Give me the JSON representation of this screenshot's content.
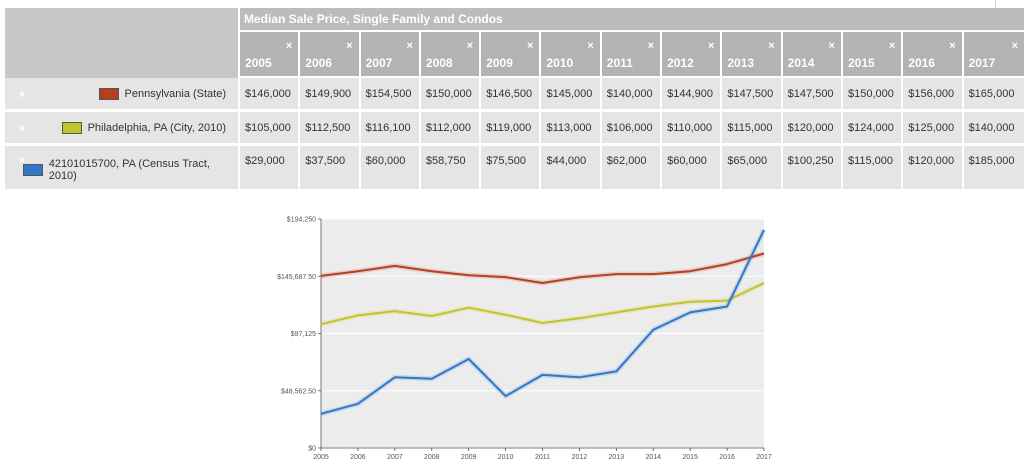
{
  "table": {
    "title": "Median Sale Price, Single Family and Condos",
    "close_glyph": "×",
    "years": [
      "2005",
      "2006",
      "2007",
      "2008",
      "2009",
      "2010",
      "2011",
      "2012",
      "2013",
      "2014",
      "2015",
      "2016",
      "2017"
    ],
    "rows": [
      {
        "label": "Pennsylvania (State)",
        "color": "#b5401e",
        "values": [
          "$146,000",
          "$149,900",
          "$154,500",
          "$150,000",
          "$146,500",
          "$145,000",
          "$140,000",
          "$144,900",
          "$147,500",
          "$147,500",
          "$150,000",
          "$156,000",
          "$165,000"
        ]
      },
      {
        "label": "Philadelphia, PA (City, 2010)",
        "color": "#c2c52a",
        "values": [
          "$105,000",
          "$112,500",
          "$116,100",
          "$112,000",
          "$119,000",
          "$113,000",
          "$106,000",
          "$110,000",
          "$115,000",
          "$120,000",
          "$124,000",
          "$125,000",
          "$140,000"
        ]
      },
      {
        "label": "42101015700, PA (Census Tract, 2010)",
        "color": "#2f78c9",
        "values": [
          "$29,000",
          "$37,500",
          "$60,000",
          "$58,750",
          "$75,500",
          "$44,000",
          "$62,000",
          "$60,000",
          "$65,000",
          "$100,250",
          "$115,000",
          "$120,000",
          "$185,000"
        ]
      }
    ]
  },
  "chart_data": {
    "type": "line",
    "x": [
      2005,
      2006,
      2007,
      2008,
      2009,
      2010,
      2011,
      2012,
      2013,
      2014,
      2015,
      2016,
      2017
    ],
    "ylim": [
      0,
      194250
    ],
    "yticks": [
      0,
      48562.5,
      97125,
      145687.5,
      194250
    ],
    "ytick_labels": [
      "$0",
      "$48,562.50",
      "$97,125",
      "$145,687.50",
      "$194,250"
    ],
    "series": [
      {
        "name": "Pennsylvania (State)",
        "color": "#b5401e",
        "values": [
          146000,
          149900,
          154500,
          150000,
          146500,
          145000,
          140000,
          144900,
          147500,
          147500,
          150000,
          156000,
          165000
        ]
      },
      {
        "name": "Philadelphia, PA (City, 2010)",
        "color": "#c2c52a",
        "values": [
          105000,
          112500,
          116100,
          112000,
          119000,
          113000,
          106000,
          110000,
          115000,
          120000,
          124000,
          125000,
          140000
        ]
      },
      {
        "name": "42101015700, PA (Census Tract, 2010)",
        "color": "#2f78c9",
        "values": [
          29000,
          37500,
          60000,
          58750,
          75500,
          44000,
          62000,
          60000,
          65000,
          100250,
          115000,
          120000,
          185000
        ]
      }
    ]
  }
}
